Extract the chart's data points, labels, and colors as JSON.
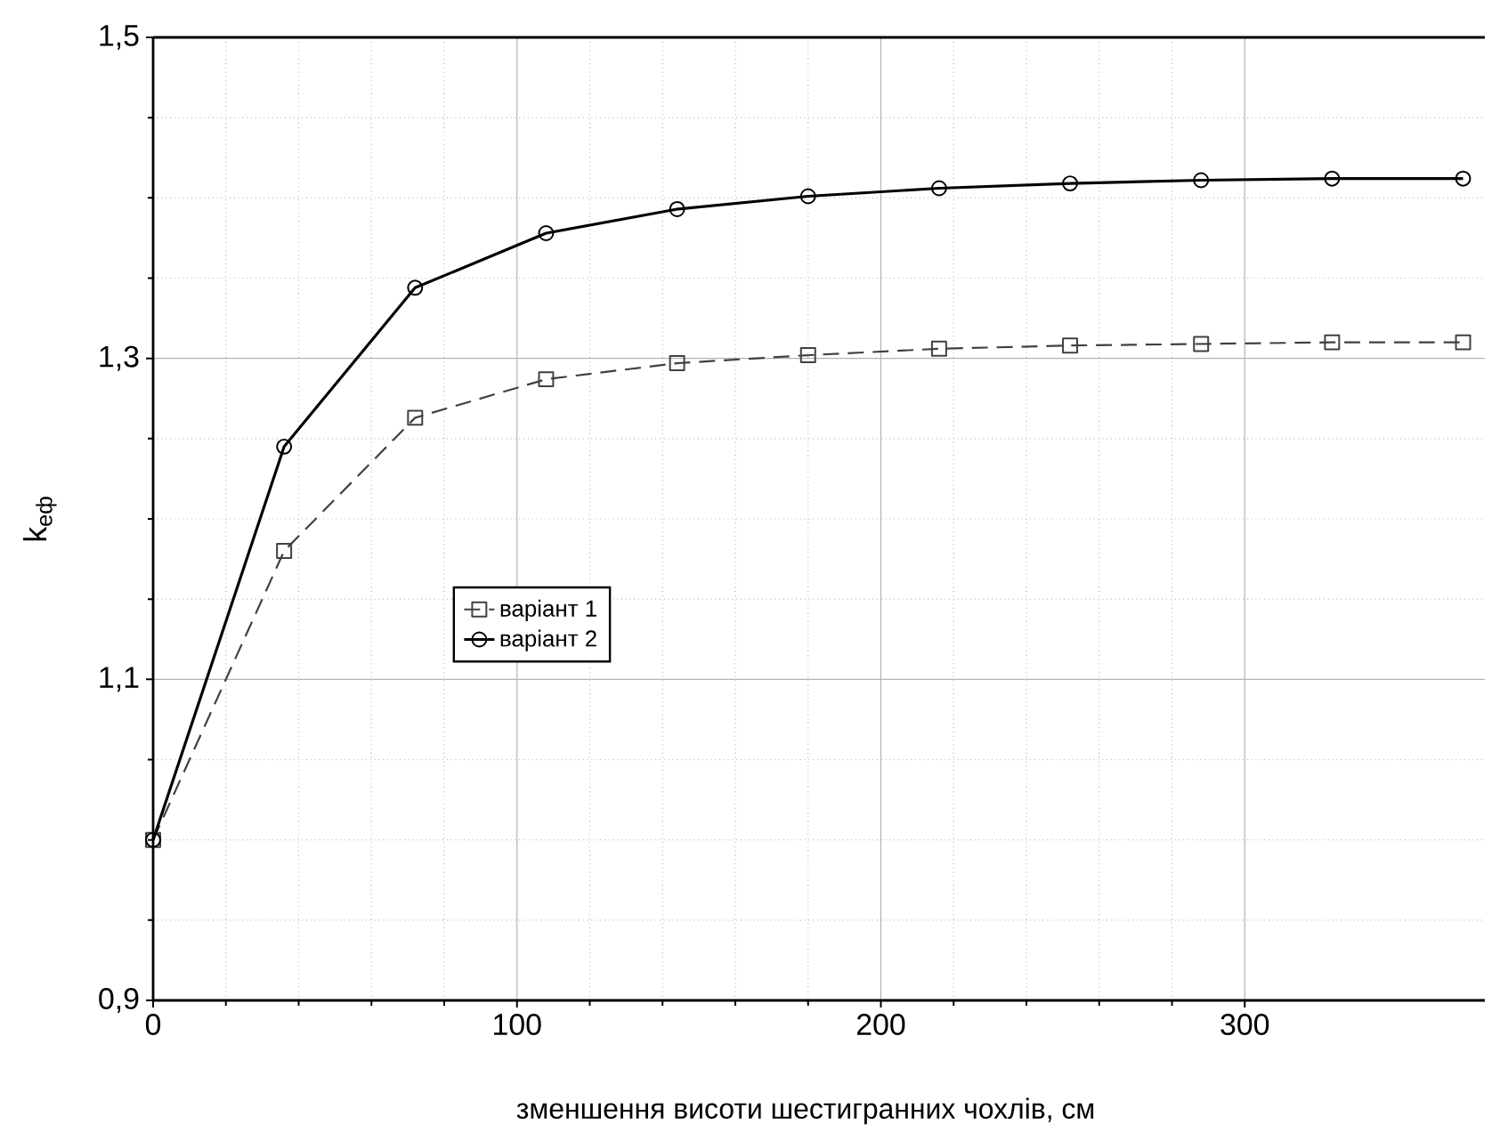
{
  "chart_data": {
    "type": "line",
    "xlabel": "зменшення висоти шестигранних чохлів, см",
    "ylabel": "k$_{еф}$",
    "x": [
      0,
      36,
      72,
      108,
      144,
      180,
      216,
      252,
      288,
      324,
      360
    ],
    "series": [
      {
        "name": "варіант 1",
        "color": "#404040",
        "marker": "square",
        "line_style": "dashed",
        "values": [
          1.0,
          1.18,
          1.263,
          1.287,
          1.297,
          1.302,
          1.306,
          1.308,
          1.309,
          1.31,
          1.31
        ]
      },
      {
        "name": "варіант 2",
        "color": "#000000",
        "marker": "circle",
        "line_style": "solid",
        "values": [
          1.0,
          1.245,
          1.344,
          1.378,
          1.393,
          1.401,
          1.406,
          1.409,
          1.411,
          1.412,
          1.412
        ]
      }
    ],
    "xlim": [
      0,
      366
    ],
    "ylim": [
      0.9,
      1.5
    ],
    "xticks": [
      0,
      100,
      200,
      300
    ],
    "yticks": [
      {
        "value": 0.9,
        "label": "0,9"
      },
      {
        "value": 1.1,
        "label": "1,1"
      },
      {
        "value": 1.3,
        "label": "1,3"
      },
      {
        "value": 1.5,
        "label": "1,5"
      }
    ],
    "grid": true,
    "legend": "center left"
  }
}
